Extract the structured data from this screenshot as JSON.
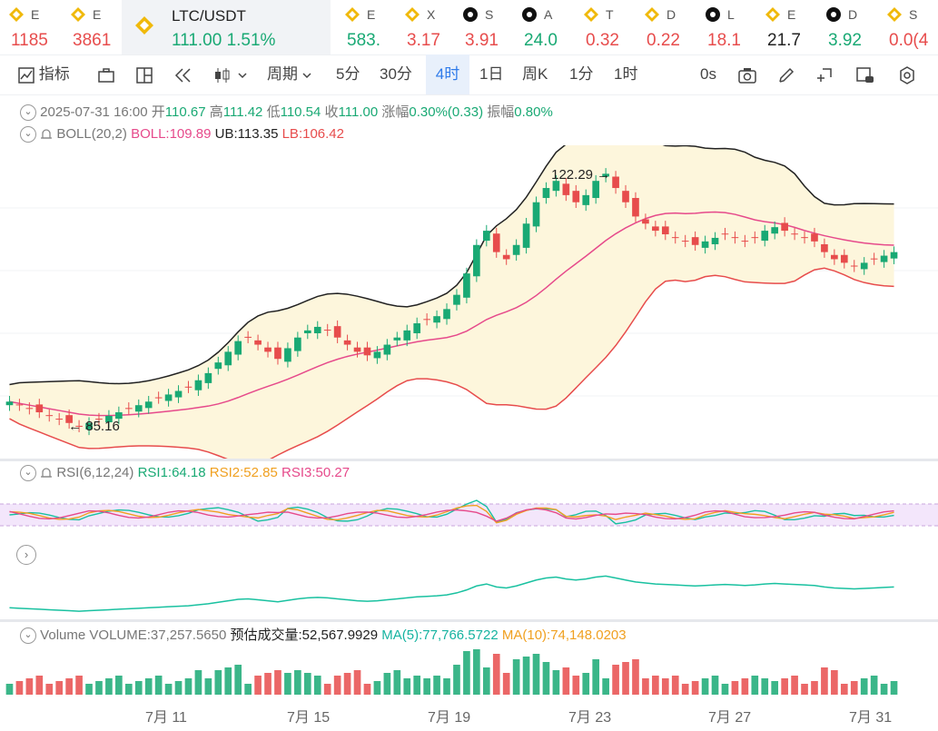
{
  "tickers": [
    {
      "sym": "E",
      "val": "1185",
      "color": "#e74c4c",
      "icon": "binance-icon"
    },
    {
      "sym": "E",
      "val": "3861",
      "color": "#e74c4c",
      "icon": "binance-icon"
    },
    {
      "sym": "LTC/USDT",
      "val": "111.00",
      "change": "1.51%",
      "color": "#19a974",
      "icon": "binance-icon",
      "active": true
    },
    {
      "sym": "E",
      "val": "583.",
      "color": "#19a974",
      "icon": "binance-icon"
    },
    {
      "sym": "X",
      "val": "3.17",
      "color": "#e74c4c",
      "icon": "binance-icon"
    },
    {
      "sym": "S",
      "val": "3.91",
      "color": "#e74c4c",
      "icon": "chain-icon"
    },
    {
      "sym": "A",
      "val": "24.0",
      "color": "#19a974",
      "icon": "chain-icon"
    },
    {
      "sym": "T",
      "val": "0.32",
      "color": "#e74c4c",
      "icon": "binance-icon"
    },
    {
      "sym": "D",
      "val": "0.22",
      "color": "#e74c4c",
      "icon": "binance-icon"
    },
    {
      "sym": "L",
      "val": "18.1",
      "color": "#e74c4c",
      "icon": "chain-icon"
    },
    {
      "sym": "E",
      "val": "21.7",
      "color": "#222222",
      "icon": "binance-icon"
    },
    {
      "sym": "D",
      "val": "3.92",
      "color": "#19a974",
      "icon": "chain-icon"
    },
    {
      "sym": "S",
      "val": "0.0(4",
      "color": "#e74c4c",
      "icon": "binance-icon"
    }
  ],
  "toolbar": {
    "indicators": "指标",
    "period": "周期",
    "intervals": [
      "5分",
      "30分",
      "4时",
      "1日",
      "周K",
      "1分",
      "1时"
    ],
    "active_interval": "4时",
    "countdown": "0s"
  },
  "ohlc": {
    "date": "2025-07-31 16:00",
    "open_label": "开",
    "open": "110.67",
    "high_label": "高",
    "high": "111.42",
    "low_label": "低",
    "low": "110.54",
    "close_label": "收",
    "close": "111.00",
    "chg_label": "涨幅",
    "chg": "0.30%(0.33)",
    "amp_label": "振幅",
    "amp": "0.80%"
  },
  "boll": {
    "name": "BOLL(20,2)",
    "boll": "BOLL:109.89",
    "ub": "UB:113.35",
    "lb": "LB:106.42"
  },
  "rsi": {
    "name": "RSI(6,12,24)",
    "rsi1": "RSI1:64.18",
    "rsi2": "RSI2:52.85",
    "rsi3": "RSI3:50.27"
  },
  "volume": {
    "name": "Volume",
    "vol": "VOLUME:37,257.5650",
    "est": "预估成交量:52,567.9929",
    "ma5": "MA(5):77,766.5722",
    "ma10": "MA(10):74,148.0203"
  },
  "annotations": {
    "high": "122.29",
    "low": "85.16"
  },
  "xaxis": [
    "7月 11",
    "7月 15",
    "7月 19",
    "7月 23",
    "7月 27",
    "7月 31"
  ],
  "colors": {
    "up": "#19a974",
    "down": "#e74c4c",
    "ub": "#222222",
    "mid": "#e64a8b",
    "lb": "#e74c4c",
    "band": "#fdf6dc"
  },
  "chart_data": {
    "type": "candlestick",
    "ylim": [
      82,
      126
    ],
    "series_close": [
      90,
      89.5,
      89,
      88.5,
      88,
      87.5,
      87,
      86.5,
      87,
      87.5,
      88,
      88.5,
      89,
      89.5,
      90,
      90.5,
      91,
      91.5,
      92,
      93,
      94,
      95.5,
      97,
      98.5,
      99,
      98,
      97,
      96,
      97.5,
      99,
      100,
      100.5,
      100,
      99,
      98,
      97,
      96.5,
      97,
      98,
      99,
      100,
      101,
      101.5,
      102,
      103,
      105,
      108,
      112,
      114,
      111,
      110,
      112,
      115,
      118,
      120,
      121,
      119,
      118,
      119,
      121,
      122,
      120,
      118,
      116,
      115,
      114,
      113.5,
      113,
      112.5,
      112,
      112.5,
      113,
      113.5,
      113,
      112.5,
      113,
      114,
      114.5,
      114,
      113.5,
      113,
      112.5,
      111,
      110,
      109.5,
      109,
      109.5,
      110,
      110.5,
      111
    ]
  }
}
